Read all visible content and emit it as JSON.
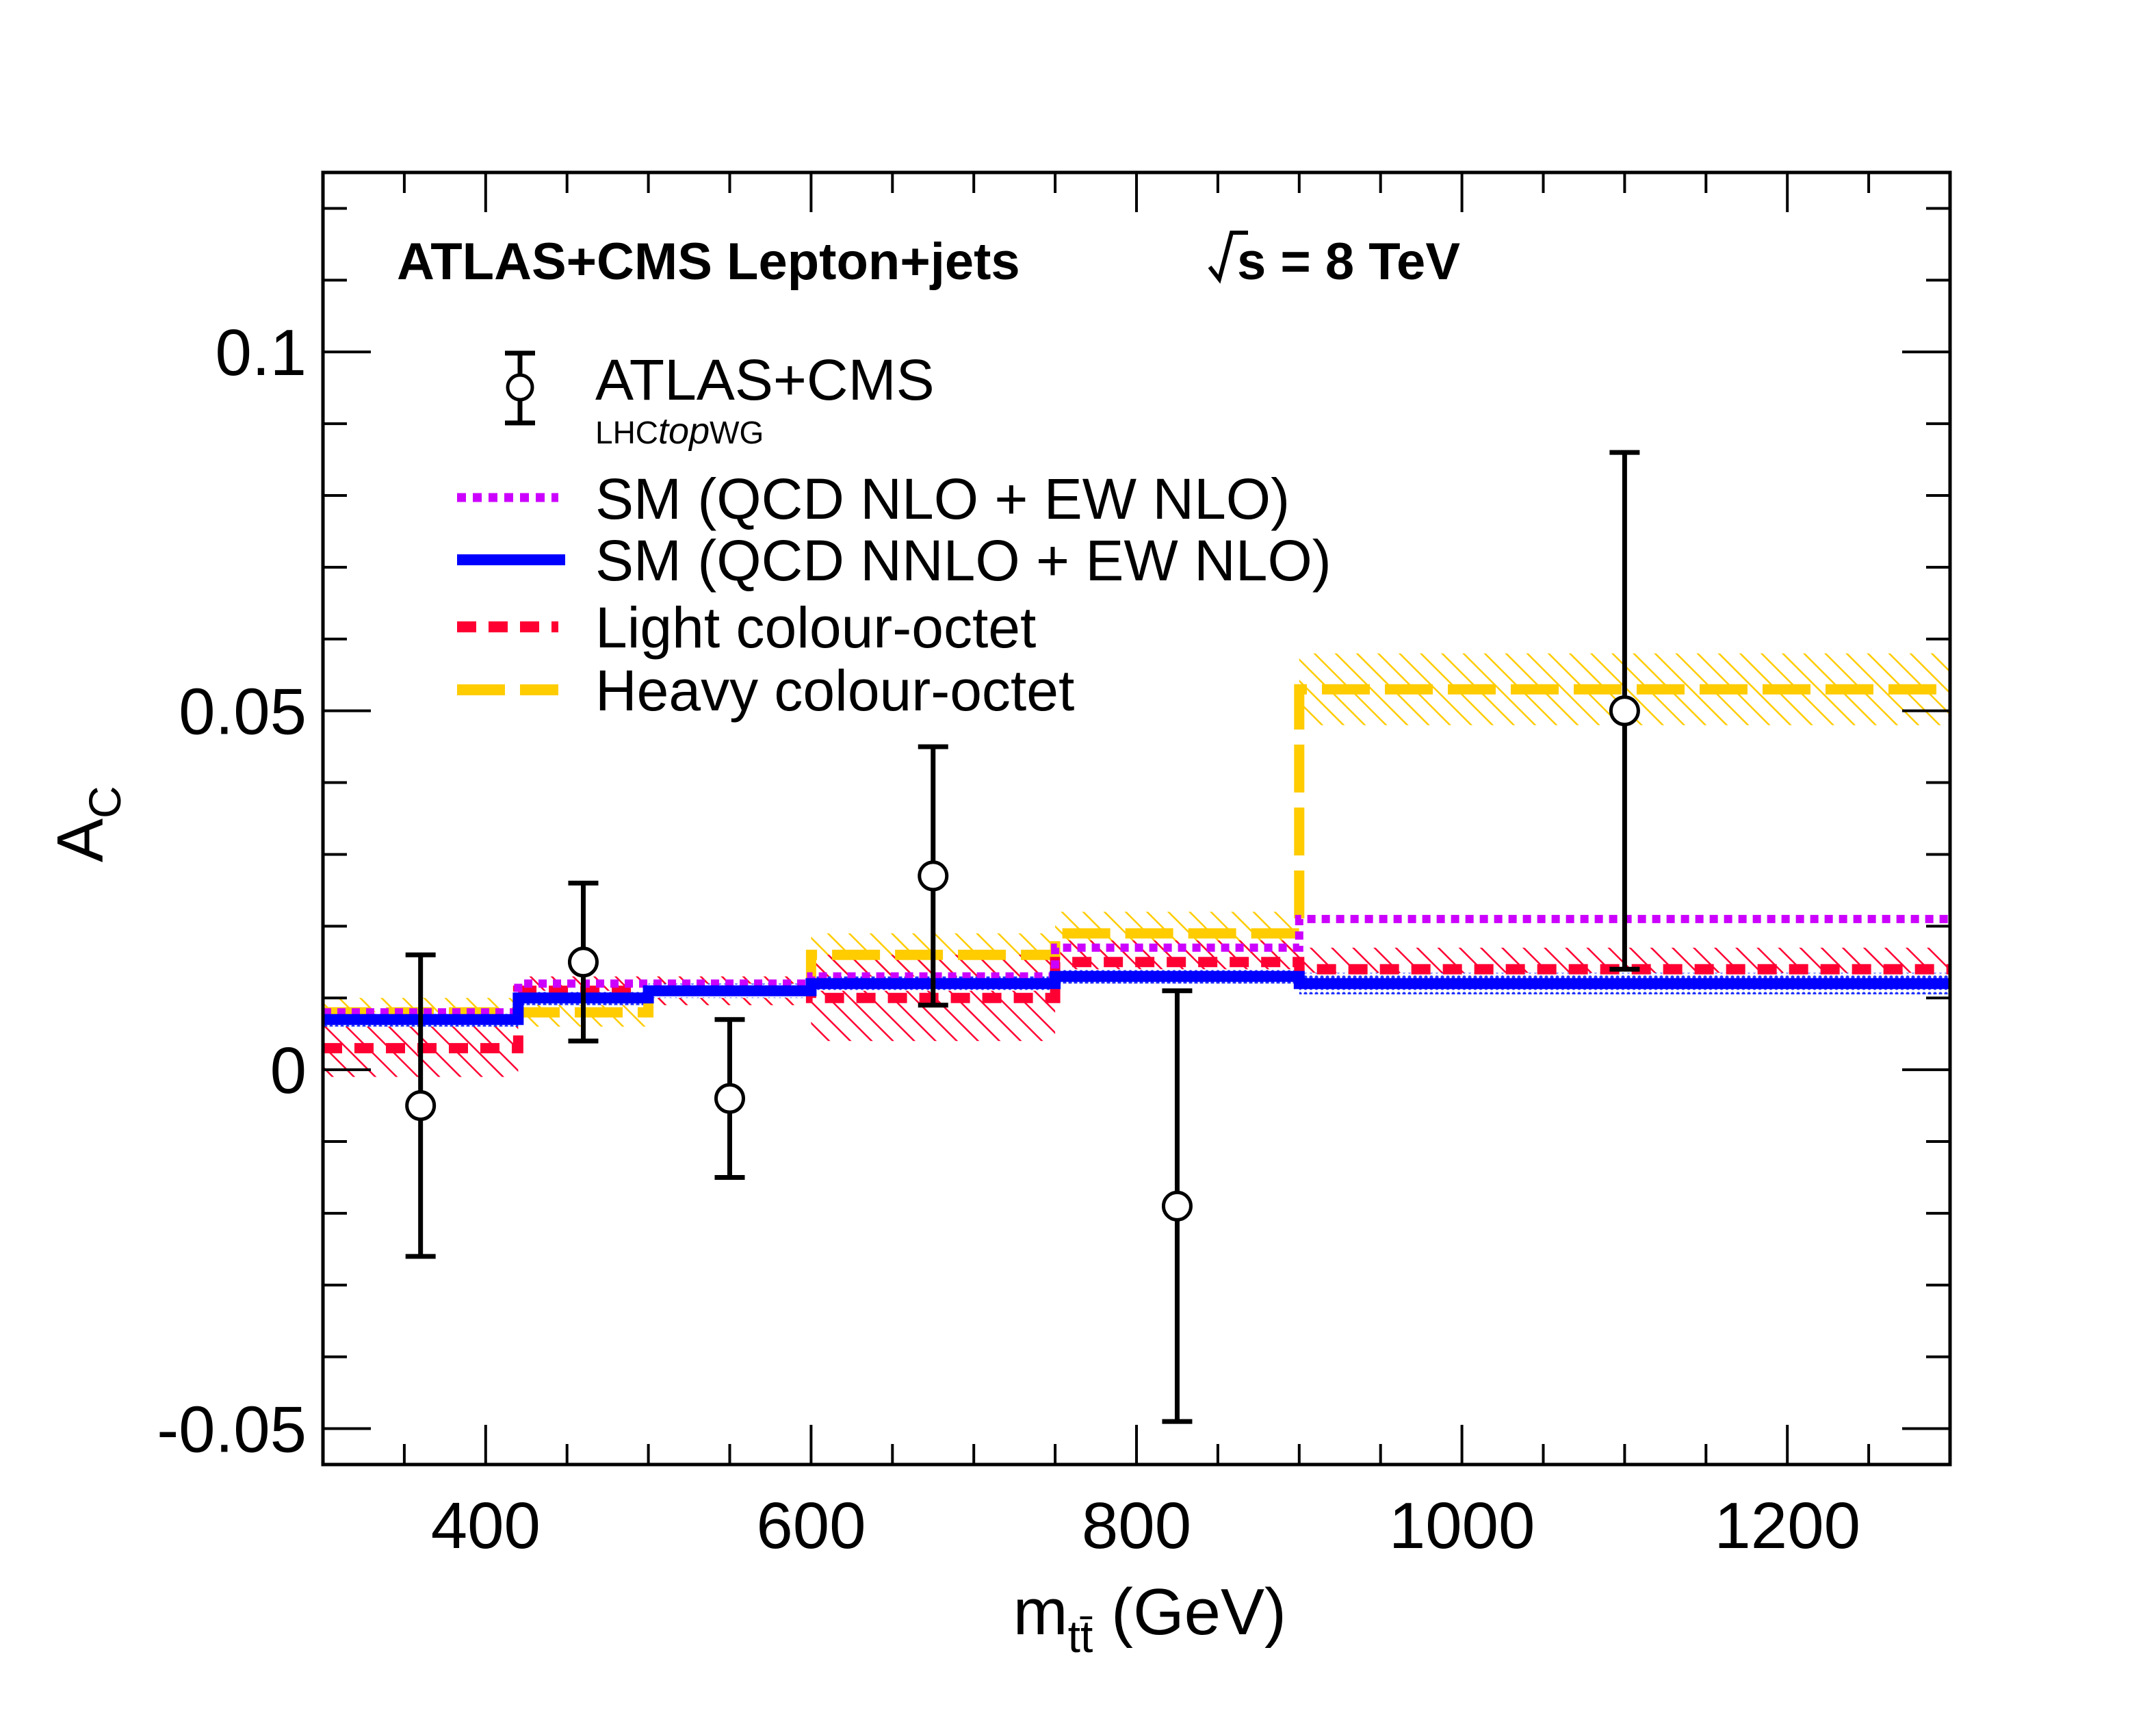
{
  "chart_data": {
    "type": "line",
    "title": "ATLAS+CMS Lepton+jets",
    "energy_label": "s = 8 TeV",
    "xlabel": "m",
    "xlabel_sub": "tt̄",
    "xlabel_unit": " (GeV)",
    "ylabel": "A",
    "ylabel_sub": "C",
    "xlim": [
      300,
      1300
    ],
    "ylim": [
      -0.055,
      0.125
    ],
    "xticks": [
      400,
      600,
      800,
      1000,
      1200
    ],
    "xtick_labels": [
      "400",
      "600",
      "800",
      "1000",
      "1200"
    ],
    "yticks": [
      -0.05,
      0,
      0.05,
      0.1
    ],
    "ytick_labels": [
      "-0.05",
      "0",
      "0.05",
      "0.1"
    ],
    "bin_edges": [
      300,
      420,
      500,
      600,
      750,
      900,
      1300
    ],
    "legend": {
      "data_label": "ATLAS+CMS",
      "data_sublabel_pre": "LHC",
      "data_sublabel_italic": "top",
      "data_sublabel_post": "WG",
      "entries": [
        {
          "key": "nlo",
          "label": "SM (QCD NLO + EW NLO)"
        },
        {
          "key": "nnlo",
          "label": "SM (QCD NNLO + EW NLO)"
        },
        {
          "key": "light",
          "label": "Light colour-octet"
        },
        {
          "key": "heavy",
          "label": "Heavy colour-octet"
        }
      ]
    },
    "data_points": {
      "name": "ATLAS+CMS",
      "x": [
        360,
        460,
        550,
        675,
        825,
        1100
      ],
      "y": [
        -0.005,
        0.015,
        -0.004,
        0.027,
        -0.019,
        0.05
      ],
      "yerr_up": [
        0.021,
        0.011,
        0.011,
        0.018,
        0.03,
        0.036
      ],
      "yerr_down": [
        0.021,
        0.011,
        0.011,
        0.018,
        0.03,
        0.036
      ]
    },
    "series": [
      {
        "key": "heavy",
        "name": "Heavy colour-octet",
        "color": "#ffcc00",
        "values": [
          0.008,
          0.008,
          0.011,
          0.016,
          0.019,
          0.053
        ],
        "band_half": [
          0.002,
          0.002,
          0.002,
          0.003,
          0.003,
          0.005
        ]
      },
      {
        "key": "light",
        "name": "Light colour-octet",
        "color": "#ff0033",
        "values": [
          0.003,
          0.011,
          0.011,
          0.01,
          0.015,
          0.014
        ],
        "band_half": [
          0.004,
          0.002,
          0.002,
          0.006,
          0.003,
          0.003
        ]
      },
      {
        "key": "nlo",
        "name": "SM (QCD NLO + EW NLO)",
        "color": "#cc00ff",
        "values": [
          0.008,
          0.012,
          0.012,
          0.013,
          0.017,
          0.021
        ],
        "band_half": [
          0,
          0,
          0,
          0,
          0,
          0
        ]
      },
      {
        "key": "nnlo",
        "name": "SM (QCD NNLO + EW NLO)",
        "color": "#0000ff",
        "values": [
          0.007,
          0.01,
          0.011,
          0.012,
          0.013,
          0.012
        ],
        "band_half": [
          0.001,
          0.001,
          0.001,
          0.001,
          0.001,
          0.0015
        ]
      }
    ]
  }
}
